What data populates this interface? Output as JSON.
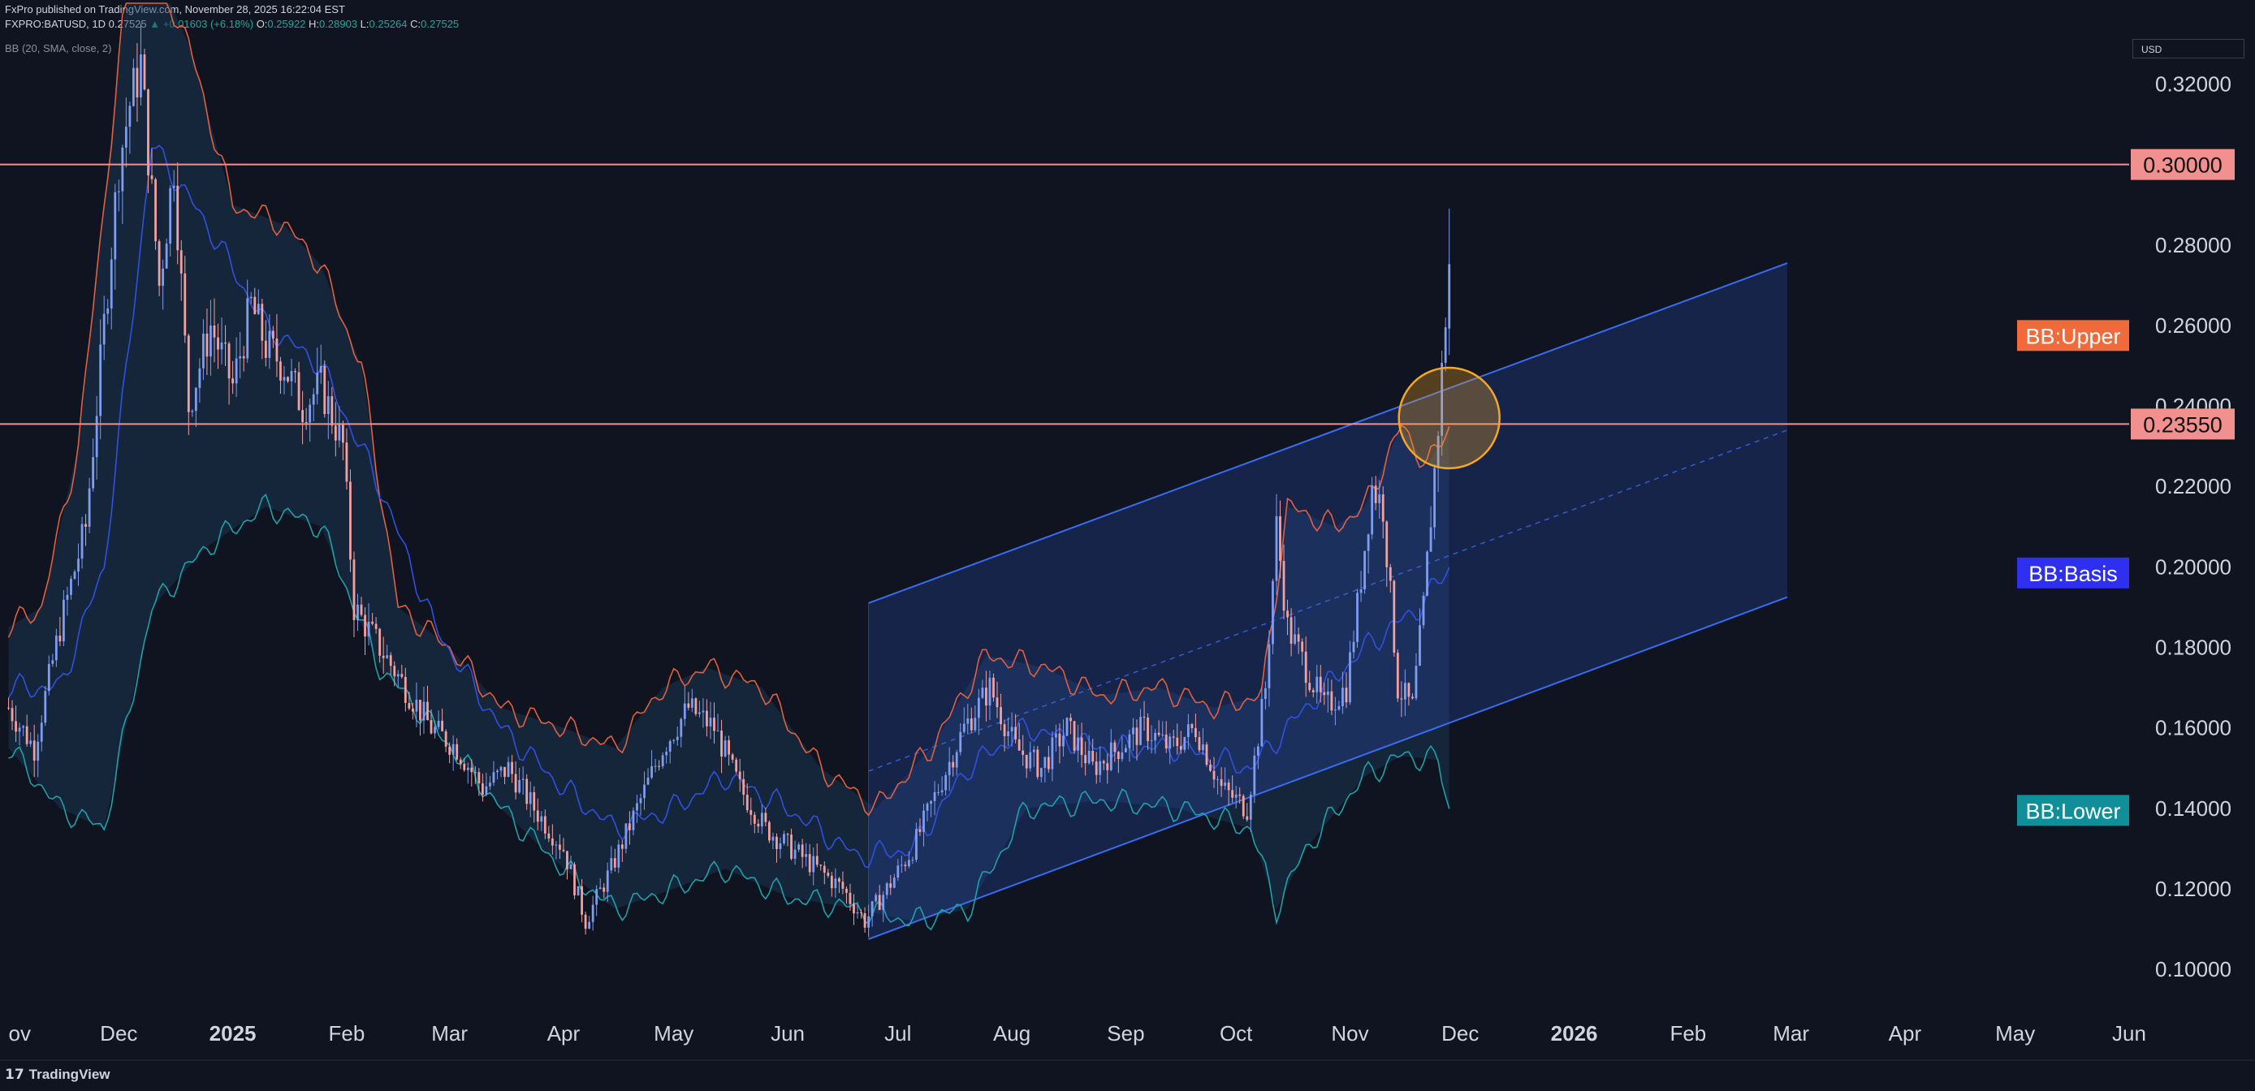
{
  "header": {
    "published": "FxPro published on TradingView.com, November 28, 2025 16:22:04 EST",
    "symbol": "FXPRO:BATUSD, 1D",
    "last": "0.27525",
    "change": "▲ +0.01603 (+6.18%)",
    "open_label": "O:",
    "open": "0.25922",
    "high_label": "H:",
    "high": "0.28903",
    "low_label": "L:",
    "low": "0.25264",
    "close_label": "C:",
    "close": "0.27525",
    "indicator": "BB (20, SMA, close, 2)"
  },
  "currency": "USD",
  "brand": "TradingView",
  "colors": {
    "background": "#0f1420",
    "bull": "#7e9cf0",
    "bear": "#f2a0a0",
    "bb_upper": "#e06040",
    "bb_basis": "#3050e0",
    "bb_lower": "#20a0a8",
    "channel": "#3a6cf0",
    "hline": "#f29090",
    "highlight": "#f5a623"
  },
  "chart_data": {
    "type": "candlestick",
    "x_axis": {
      "labels": [
        "ov",
        "Dec",
        "2025",
        "Feb",
        "Mar",
        "Apr",
        "May",
        "Jun",
        "Jul",
        "Aug",
        "Sep",
        "Oct",
        "Nov",
        "Dec",
        "2026",
        "Feb",
        "Mar",
        "Apr",
        "May",
        "Jun"
      ],
      "label_dates": [
        "2024-11-01",
        "2024-12-01",
        "2025-01-01",
        "2025-02-01",
        "2025-03-01",
        "2025-04-01",
        "2025-05-01",
        "2025-06-01",
        "2025-07-01",
        "2025-08-01",
        "2025-09-01",
        "2025-10-01",
        "2025-11-01",
        "2025-12-01",
        "2026-01-01",
        "2026-02-01",
        "2026-03-01",
        "2026-04-01",
        "2026-05-01",
        "2026-06-01"
      ],
      "bold_labels": [
        "2025",
        "2026"
      ],
      "range": [
        "2024-10-31",
        "2026-06-01"
      ]
    },
    "y_axis": {
      "ticks": [
        "0.32000",
        "0.30000",
        "0.28000",
        "0.26000",
        "0.24000",
        "0.22000",
        "0.20000",
        "0.18000",
        "0.16000",
        "0.14000",
        "0.12000",
        "0.10000"
      ],
      "range": [
        0.0855,
        0.332
      ]
    },
    "price_close_path": [
      [
        "2024-11-01",
        0.165
      ],
      [
        "2024-11-08",
        0.155
      ],
      [
        "2024-11-15",
        0.185
      ],
      [
        "2024-11-22",
        0.21
      ],
      [
        "2024-11-27",
        0.26
      ],
      [
        "2024-12-01",
        0.3
      ],
      [
        "2024-12-04",
        0.315
      ],
      [
        "2024-12-07",
        0.325
      ],
      [
        "2024-12-12",
        0.27
      ],
      [
        "2024-12-16",
        0.3
      ],
      [
        "2024-12-20",
        0.24
      ],
      [
        "2024-12-26",
        0.26
      ],
      [
        "2025-01-01",
        0.245
      ],
      [
        "2025-01-06",
        0.265
      ],
      [
        "2025-01-10",
        0.255
      ],
      [
        "2025-01-15",
        0.25
      ],
      [
        "2025-01-20",
        0.24
      ],
      [
        "2025-01-25",
        0.245
      ],
      [
        "2025-01-31",
        0.23
      ],
      [
        "2025-02-03",
        0.19
      ],
      [
        "2025-02-10",
        0.18
      ],
      [
        "2025-02-17",
        0.17
      ],
      [
        "2025-02-24",
        0.16
      ],
      [
        "2025-03-03",
        0.155
      ],
      [
        "2025-03-10",
        0.145
      ],
      [
        "2025-03-17",
        0.15
      ],
      [
        "2025-03-24",
        0.14
      ],
      [
        "2025-04-01",
        0.13
      ],
      [
        "2025-04-07",
        0.112
      ],
      [
        "2025-04-14",
        0.125
      ],
      [
        "2025-04-21",
        0.14
      ],
      [
        "2025-04-28",
        0.155
      ],
      [
        "2025-05-05",
        0.165
      ],
      [
        "2025-05-12",
        0.16
      ],
      [
        "2025-05-19",
        0.145
      ],
      [
        "2025-05-26",
        0.135
      ],
      [
        "2025-06-02",
        0.13
      ],
      [
        "2025-06-09",
        0.125
      ],
      [
        "2025-06-16",
        0.12
      ],
      [
        "2025-06-22",
        0.112
      ],
      [
        "2025-06-28",
        0.12
      ],
      [
        "2025-07-05",
        0.13
      ],
      [
        "2025-07-12",
        0.145
      ],
      [
        "2025-07-19",
        0.16
      ],
      [
        "2025-07-26",
        0.17
      ],
      [
        "2025-08-02",
        0.155
      ],
      [
        "2025-08-09",
        0.15
      ],
      [
        "2025-08-16",
        0.16
      ],
      [
        "2025-08-23",
        0.15
      ],
      [
        "2025-08-30",
        0.155
      ],
      [
        "2025-09-06",
        0.16
      ],
      [
        "2025-09-13",
        0.155
      ],
      [
        "2025-09-20",
        0.16
      ],
      [
        "2025-09-27",
        0.145
      ],
      [
        "2025-10-04",
        0.14
      ],
      [
        "2025-10-09",
        0.17
      ],
      [
        "2025-10-12",
        0.21
      ],
      [
        "2025-10-15",
        0.185
      ],
      [
        "2025-10-20",
        0.175
      ],
      [
        "2025-10-25",
        0.165
      ],
      [
        "2025-10-31",
        0.17
      ],
      [
        "2025-11-03",
        0.19
      ],
      [
        "2025-11-07",
        0.22
      ],
      [
        "2025-11-10",
        0.215
      ],
      [
        "2025-11-14",
        0.17
      ],
      [
        "2025-11-18",
        0.165
      ],
      [
        "2025-11-21",
        0.19
      ],
      [
        "2025-11-25",
        0.235
      ],
      [
        "2025-11-28",
        0.27525
      ]
    ],
    "bollinger_bands": {
      "params": "BB (20, SMA, close, 2)",
      "upper": [
        [
          "2024-11-01",
          0.185
        ],
        [
          "2024-11-10",
          0.19
        ],
        [
          "2024-11-20",
          0.23
        ],
        [
          "2024-11-27",
          0.29
        ],
        [
          "2024-12-05",
          0.36
        ],
        [
          "2024-12-20",
          0.33
        ],
        [
          "2025-01-01",
          0.29
        ],
        [
          "2025-01-15",
          0.285
        ],
        [
          "2025-01-25",
          0.275
        ],
        [
          "2025-02-05",
          0.25
        ],
        [
          "2025-02-15",
          0.19
        ],
        [
          "2025-03-01",
          0.18
        ],
        [
          "2025-03-15",
          0.165
        ],
        [
          "2025-04-01",
          0.16
        ],
        [
          "2025-04-15",
          0.155
        ],
        [
          "2025-04-28",
          0.17
        ],
        [
          "2025-05-10",
          0.175
        ],
        [
          "2025-05-25",
          0.17
        ],
        [
          "2025-06-10",
          0.15
        ],
        [
          "2025-06-25",
          0.14
        ],
        [
          "2025-07-10",
          0.155
        ],
        [
          "2025-07-25",
          0.178
        ],
        [
          "2025-08-10",
          0.175
        ],
        [
          "2025-08-25",
          0.168
        ],
        [
          "2025-09-10",
          0.17
        ],
        [
          "2025-09-25",
          0.165
        ],
        [
          "2025-10-08",
          0.168
        ],
        [
          "2025-10-15",
          0.215
        ],
        [
          "2025-10-28",
          0.21
        ],
        [
          "2025-11-05",
          0.215
        ],
        [
          "2025-11-15",
          0.235
        ],
        [
          "2025-11-22",
          0.225
        ],
        [
          "2025-11-28",
          0.235
        ]
      ],
      "basis": [
        [
          "2024-11-01",
          0.17
        ],
        [
          "2024-11-15",
          0.17
        ],
        [
          "2024-11-27",
          0.2
        ],
        [
          "2024-12-10",
          0.305
        ],
        [
          "2024-12-25",
          0.285
        ],
        [
          "2025-01-10",
          0.26
        ],
        [
          "2025-01-25",
          0.25
        ],
        [
          "2025-02-10",
          0.22
        ],
        [
          "2025-02-25",
          0.185
        ],
        [
          "2025-03-15",
          0.16
        ],
        [
          "2025-04-01",
          0.145
        ],
        [
          "2025-04-15",
          0.135
        ],
        [
          "2025-05-01",
          0.14
        ],
        [
          "2025-05-15",
          0.148
        ],
        [
          "2025-06-01",
          0.14
        ],
        [
          "2025-06-20",
          0.128
        ],
        [
          "2025-07-05",
          0.13
        ],
        [
          "2025-07-20",
          0.15
        ],
        [
          "2025-08-05",
          0.16
        ],
        [
          "2025-08-25",
          0.155
        ],
        [
          "2025-09-15",
          0.155
        ],
        [
          "2025-10-05",
          0.15
        ],
        [
          "2025-10-20",
          0.165
        ],
        [
          "2025-11-05",
          0.18
        ],
        [
          "2025-11-20",
          0.19
        ],
        [
          "2025-11-28",
          0.2
        ]
      ],
      "lower": [
        [
          "2024-11-01",
          0.155
        ],
        [
          "2024-11-15",
          0.14
        ],
        [
          "2024-11-27",
          0.135
        ],
        [
          "2024-12-10",
          0.19
        ],
        [
          "2024-12-25",
          0.205
        ],
        [
          "2025-01-10",
          0.215
        ],
        [
          "2025-01-25",
          0.21
        ],
        [
          "2025-02-10",
          0.175
        ],
        [
          "2025-02-25",
          0.16
        ],
        [
          "2025-03-15",
          0.14
        ],
        [
          "2025-04-01",
          0.125
        ],
        [
          "2025-04-15",
          0.115
        ],
        [
          "2025-05-01",
          0.12
        ],
        [
          "2025-05-15",
          0.125
        ],
        [
          "2025-06-01",
          0.118
        ],
        [
          "2025-06-20",
          0.115
        ],
        [
          "2025-07-05",
          0.112
        ],
        [
          "2025-07-20",
          0.115
        ],
        [
          "2025-08-05",
          0.14
        ],
        [
          "2025-08-25",
          0.142
        ],
        [
          "2025-09-15",
          0.14
        ],
        [
          "2025-10-05",
          0.135
        ],
        [
          "2025-10-12",
          0.115
        ],
        [
          "2025-10-20",
          0.13
        ],
        [
          "2025-11-05",
          0.148
        ],
        [
          "2025-11-15",
          0.153
        ],
        [
          "2025-11-25",
          0.152
        ],
        [
          "2025-11-28",
          0.14
        ]
      ]
    },
    "channel": {
      "start": [
        "2025-06-23",
        0.1075
      ],
      "end": [
        "2026-02-28",
        0.1925
      ],
      "upper_start": 0.191,
      "upper_end": 0.2755
    },
    "horizontal_levels": [
      0.3,
      0.2355
    ],
    "highlight_circle": {
      "center": [
        "2025-11-28",
        0.237
      ],
      "radius_price": 0.0125
    },
    "price_labels": [
      {
        "text": "0.30000",
        "value": 0.3,
        "kind": "level",
        "color": "#f29090"
      },
      {
        "text": "BB:Upper",
        "value": 0.2575,
        "kind": "bb_upper",
        "color": "#f06a3c"
      },
      {
        "text": "0.23550",
        "value": 0.2355,
        "kind": "level",
        "color": "#f29090"
      },
      {
        "text": "BB:Basis",
        "value": 0.1985,
        "kind": "bb_basis",
        "color": "#2f2ff0"
      },
      {
        "text": "BB:Lower",
        "value": 0.1395,
        "kind": "bb_lower",
        "color": "#108f98"
      }
    ]
  }
}
